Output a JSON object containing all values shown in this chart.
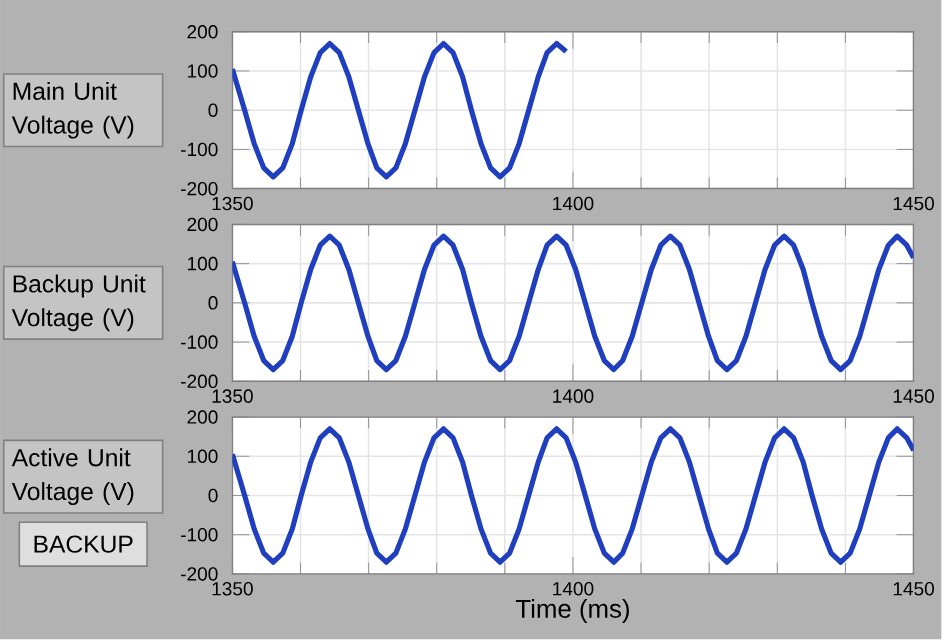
{
  "chart_data": [
    {
      "type": "line",
      "ylabel": "Main Unit Voltage (V)",
      "color": "#1f3fbf",
      "xlim": [
        1350,
        1450
      ],
      "xticks": [
        1350,
        1400,
        1450
      ],
      "ylim": [
        -200,
        200
      ],
      "yticks": [
        -200,
        -100,
        0,
        100,
        200
      ],
      "grid": true,
      "x": [
        1350,
        1351.8,
        1353.2,
        1354.6,
        1356.0,
        1357.4,
        1358.8,
        1360.1,
        1361.5,
        1362.9,
        1364.3,
        1365.7,
        1367.1,
        1368.5,
        1369.9,
        1371.2,
        1372.6,
        1374.0,
        1375.4,
        1376.8,
        1378.2,
        1379.6,
        1381.0,
        1382.4,
        1383.8,
        1385.1,
        1386.5,
        1387.9,
        1389.3,
        1390.7,
        1392.1,
        1393.5,
        1394.9,
        1396.2,
        1397.6,
        1399.0
      ],
      "values": [
        105,
        0,
        -85,
        -147,
        -170,
        -147,
        -85,
        0,
        85,
        147,
        170,
        147,
        85,
        0,
        -85,
        -147,
        -170,
        -147,
        -85,
        0,
        85,
        147,
        170,
        147,
        85,
        0,
        -85,
        -147,
        -170,
        -147,
        -85,
        0,
        85,
        147,
        170,
        150
      ]
    },
    {
      "type": "line",
      "ylabel": "Backup Unit Voltage (V)",
      "color": "#1f3fbf",
      "xlim": [
        1350,
        1450
      ],
      "xticks": [
        1350,
        1400,
        1450
      ],
      "ylim": [
        -200,
        200
      ],
      "yticks": [
        -200,
        -100,
        0,
        100,
        200
      ],
      "grid": true,
      "x": [
        1350,
        1351.8,
        1353.2,
        1354.6,
        1356.0,
        1357.4,
        1358.8,
        1360.1,
        1361.5,
        1362.9,
        1364.3,
        1365.7,
        1367.1,
        1368.5,
        1369.9,
        1371.2,
        1372.6,
        1374.0,
        1375.4,
        1376.8,
        1378.2,
        1379.6,
        1381.0,
        1382.4,
        1383.8,
        1385.1,
        1386.5,
        1387.9,
        1389.3,
        1390.7,
        1392.1,
        1393.5,
        1394.9,
        1396.2,
        1397.6,
        1399.0,
        1400.4,
        1401.8,
        1403.2,
        1404.6,
        1406.0,
        1407.3,
        1408.7,
        1410.1,
        1411.5,
        1412.9,
        1414.3,
        1415.7,
        1417.1,
        1418.5,
        1419.9,
        1421.2,
        1422.6,
        1424.0,
        1425.4,
        1426.8,
        1428.2,
        1429.6,
        1431.0,
        1432.4,
        1433.8,
        1435.1,
        1436.5,
        1437.9,
        1439.3,
        1440.7,
        1442.1,
        1443.5,
        1444.9,
        1446.3,
        1447.6,
        1449.0,
        1450
      ],
      "values": [
        105,
        0,
        -85,
        -147,
        -170,
        -147,
        -85,
        0,
        85,
        147,
        170,
        147,
        85,
        0,
        -85,
        -147,
        -170,
        -147,
        -85,
        0,
        85,
        147,
        170,
        147,
        85,
        0,
        -85,
        -147,
        -170,
        -147,
        -85,
        0,
        85,
        147,
        170,
        147,
        85,
        0,
        -85,
        -147,
        -170,
        -147,
        -85,
        0,
        85,
        147,
        170,
        147,
        85,
        0,
        -85,
        -147,
        -170,
        -147,
        -85,
        0,
        85,
        147,
        170,
        147,
        85,
        0,
        -85,
        -147,
        -170,
        -147,
        -85,
        0,
        85,
        147,
        170,
        147,
        115
      ]
    },
    {
      "type": "line",
      "ylabel": "Active Unit Voltage (V)",
      "xlabel": "Time (ms)",
      "annotations": [
        "BACKUP"
      ],
      "color": "#1f3fbf",
      "xlim": [
        1350,
        1450
      ],
      "xticks": [
        1350,
        1400,
        1450
      ],
      "ylim": [
        -200,
        200
      ],
      "yticks": [
        -200,
        -100,
        0,
        100,
        200
      ],
      "grid": true,
      "x": [
        1350,
        1351.8,
        1353.2,
        1354.6,
        1356.0,
        1357.4,
        1358.8,
        1360.1,
        1361.5,
        1362.9,
        1364.3,
        1365.7,
        1367.1,
        1368.5,
        1369.9,
        1371.2,
        1372.6,
        1374.0,
        1375.4,
        1376.8,
        1378.2,
        1379.6,
        1381.0,
        1382.4,
        1383.8,
        1385.1,
        1386.5,
        1387.9,
        1389.3,
        1390.7,
        1392.1,
        1393.5,
        1394.9,
        1396.2,
        1397.6,
        1399.0,
        1400.4,
        1401.8,
        1403.2,
        1404.6,
        1406.0,
        1407.3,
        1408.7,
        1410.1,
        1411.5,
        1412.9,
        1414.3,
        1415.7,
        1417.1,
        1418.5,
        1419.9,
        1421.2,
        1422.6,
        1424.0,
        1425.4,
        1426.8,
        1428.2,
        1429.6,
        1431.0,
        1432.4,
        1433.8,
        1435.1,
        1436.5,
        1437.9,
        1439.3,
        1440.7,
        1442.1,
        1443.5,
        1444.9,
        1446.3,
        1447.6,
        1449.0,
        1450
      ],
      "values": [
        105,
        0,
        -85,
        -147,
        -170,
        -147,
        -85,
        0,
        85,
        147,
        170,
        147,
        85,
        0,
        -85,
        -147,
        -170,
        -147,
        -85,
        0,
        85,
        147,
        170,
        147,
        85,
        0,
        -85,
        -147,
        -170,
        -147,
        -85,
        0,
        85,
        147,
        170,
        147,
        85,
        0,
        -85,
        -147,
        -170,
        -147,
        -85,
        0,
        85,
        147,
        170,
        147,
        85,
        0,
        -85,
        -147,
        -170,
        -147,
        -85,
        0,
        85,
        147,
        170,
        147,
        85,
        0,
        -85,
        -147,
        -170,
        -147,
        -85,
        0,
        85,
        147,
        170,
        147,
        115
      ]
    }
  ]
}
